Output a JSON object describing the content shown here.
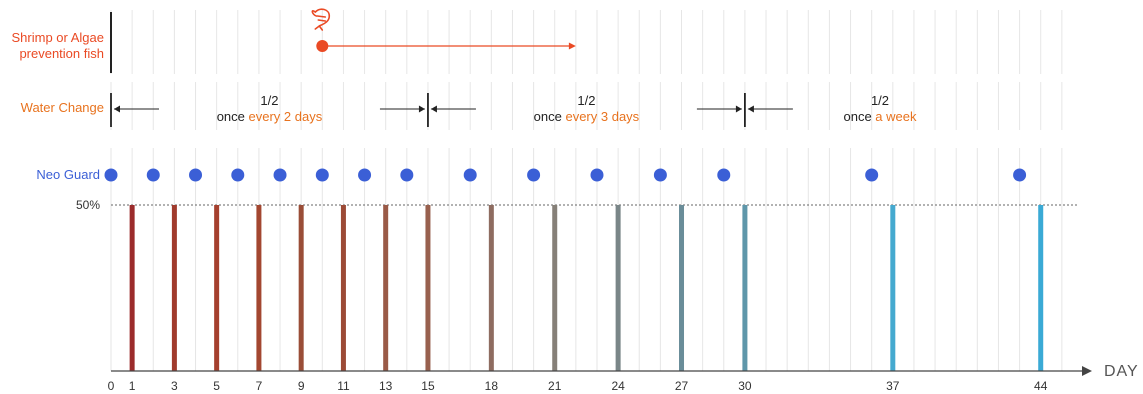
{
  "rows": {
    "shrimp": {
      "label_line1": "Shrimp or Algae",
      "label_line2": "prevention fish",
      "start_day": 10,
      "arrow_end_day": 22,
      "icon": "shrimp-icon"
    },
    "water": {
      "label": "Water Change",
      "segments": [
        {
          "fraction": "1/2",
          "prefix": "once ",
          "highlight": "every 2 days",
          "start_day": 0,
          "end_day": 15
        },
        {
          "fraction": "1/2",
          "prefix": "once ",
          "highlight": "every 3 days",
          "start_day": 15,
          "end_day": 30
        },
        {
          "fraction": "1/2",
          "prefix": "once ",
          "highlight": "a week",
          "start_day": 30,
          "end_day": 44
        }
      ]
    },
    "neo": {
      "label": "Neo Guard",
      "dose_days": [
        0,
        2,
        4,
        6,
        8,
        10,
        12,
        14,
        17,
        20,
        23,
        26,
        29,
        36,
        43
      ]
    }
  },
  "reference_line_label": "50%",
  "chart_data": {
    "type": "bar",
    "xlabel": "DAY",
    "x": [
      1,
      3,
      5,
      7,
      9,
      11,
      13,
      15,
      18,
      21,
      24,
      27,
      30,
      37,
      44
    ],
    "values": [
      50,
      50,
      50,
      50,
      50,
      50,
      50,
      50,
      50,
      50,
      50,
      50,
      50,
      50,
      50
    ],
    "tick_labels": [
      "0",
      "1",
      "3",
      "5",
      "7",
      "9",
      "11",
      "13",
      "15",
      "18",
      "21",
      "24",
      "27",
      "30",
      "37",
      "44"
    ],
    "tick_days": [
      0,
      1,
      3,
      5,
      7,
      9,
      11,
      13,
      15,
      18,
      21,
      24,
      27,
      30,
      37,
      44
    ],
    "xlim": [
      0,
      45
    ],
    "colors": [
      "#9b2b2b",
      "#a03a2c",
      "#a5402e",
      "#a34730",
      "#9a4d37",
      "#9c4a36",
      "#9a5a47",
      "#98604e",
      "#8e6c60",
      "#868078",
      "#7a8688",
      "#6a8d99",
      "#5f97aa",
      "#45a9cf",
      "#3aaad5"
    ],
    "grid": true
  },
  "colors": {
    "shrimp": "#ea4a24",
    "orange_text": "#e8731f",
    "neo_dot": "#3b5fd6",
    "grid": "#e6e6e6"
  }
}
